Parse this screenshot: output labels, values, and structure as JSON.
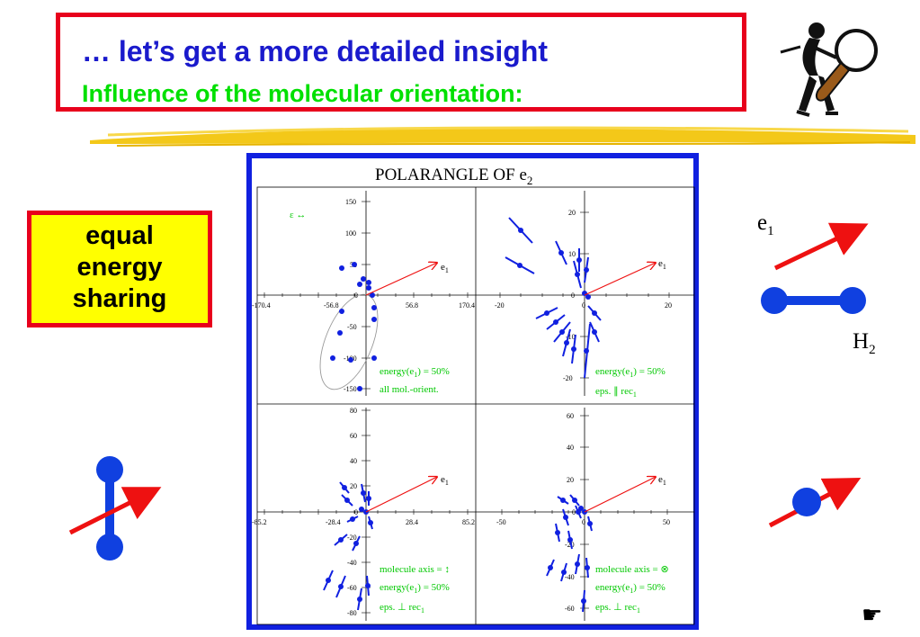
{
  "slide": {
    "title": "… let’s get a more detailed insight",
    "subtitle": "Influence of the molecular orientation:",
    "side_box": {
      "line1": "equal",
      "line2": "energy",
      "line3": "sharing"
    },
    "labels": {
      "e1": "e",
      "e1_sub": "1",
      "h2": "H",
      "h2_sub": "2"
    },
    "nav_icon": "pointing-hand-icon",
    "colors": {
      "title": "#1a1acc",
      "subtitle": "#00e000",
      "frame_red": "#e8001c",
      "frame_blue": "#1020e0",
      "box_yellow": "#ffff00",
      "arrow_red": "#ee1111",
      "molecule_blue": "#1040e0"
    }
  },
  "figure": {
    "title": "POLARANGLE OF e",
    "title_sub": "2",
    "epsilon_label": "ε ↔",
    "e1_label": "e",
    "e1_sub": "1",
    "panels": [
      {
        "id": "top-left",
        "x_ticks": [
          "-170.4",
          "-56.8",
          "56.8",
          "170.4"
        ],
        "y_ticks": [
          "150",
          "100",
          "50",
          "0",
          "-50",
          "-100",
          "-150"
        ],
        "legend": [
          "energy(e",
          "1",
          ") = 50%",
          "all mol.-orient."
        ]
      },
      {
        "id": "top-right",
        "x_ticks": [
          "-20",
          "0",
          "20"
        ],
        "y_ticks": [
          "20",
          "10",
          "0",
          "-10",
          "-20"
        ],
        "legend": [
          "energy(e",
          "1",
          ") = 50%",
          "eps. ∥ rec",
          "1"
        ]
      },
      {
        "id": "bottom-left",
        "x_ticks": [
          "-85.2",
          "-28.4",
          "28.4",
          "85.2"
        ],
        "y_ticks": [
          "80",
          "60",
          "40",
          "20",
          "0",
          "-20",
          "-40",
          "-60",
          "-80"
        ],
        "legend": [
          "molecule axis = ↕",
          "energy(e",
          "1",
          ") = 50%",
          "eps. ⊥ rec",
          "1"
        ]
      },
      {
        "id": "bottom-right",
        "x_ticks": [
          "-50",
          "0",
          "50"
        ],
        "y_ticks": [
          "60",
          "40",
          "20",
          "0",
          "-20",
          "-40",
          "-60"
        ],
        "legend": [
          "molecule axis = ⊗",
          "energy(e",
          "1",
          ") = 50%",
          "eps. ⊥ rec",
          "1"
        ]
      }
    ]
  }
}
